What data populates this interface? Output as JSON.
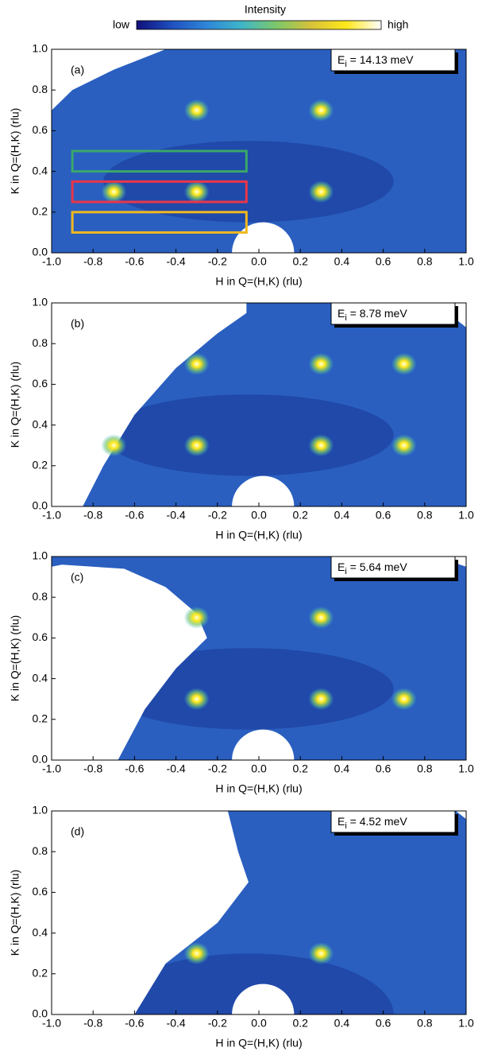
{
  "colorbar": {
    "title": "Intensity",
    "low": "low",
    "high": "high",
    "colors": [
      "#10107a",
      "#1f4fbf",
      "#2e86d8",
      "#3fb5c9",
      "#7cc86a",
      "#d7c23a",
      "#ffe81a",
      "#ffffff"
    ]
  },
  "chart_data": [
    {
      "type": "heatmap",
      "panel_label": "(a)",
      "annotation": {
        "symbol": "E",
        "subscript": "i",
        "text": " = 14.13 meV"
      },
      "x_label": "H in Q=(H,K) (rlu)",
      "y_label": "K in Q=(H,K) (rlu)",
      "xlim": [
        -1,
        1
      ],
      "ylim": [
        0,
        1
      ],
      "xticks": [
        {
          "value": -1,
          "label": "-1.0"
        },
        {
          "value": -0.8,
          "label": "-0.8"
        },
        {
          "value": -0.6,
          "label": "-0.6"
        },
        {
          "value": -0.4,
          "label": "-0.4"
        },
        {
          "value": -0.2,
          "label": "-0.2"
        },
        {
          "value": 0,
          "label": "0.0"
        },
        {
          "value": 0.2,
          "label": "0.2"
        },
        {
          "value": 0.4,
          "label": "0.4"
        },
        {
          "value": 0.6,
          "label": "0.6"
        },
        {
          "value": 0.8,
          "label": "0.8"
        },
        {
          "value": 1,
          "label": "1.0"
        }
      ],
      "yticks": [
        {
          "value": 0,
          "label": "0.0"
        },
        {
          "value": 0.2,
          "label": "0.2"
        },
        {
          "value": 0.4,
          "label": "0.4"
        },
        {
          "value": 0.6,
          "label": "0.6"
        },
        {
          "value": 0.8,
          "label": "0.8"
        },
        {
          "value": 1,
          "label": "1.0"
        }
      ],
      "peaks": {
        "x": [
          -0.7,
          -0.3,
          0.3,
          -0.3,
          0.3
        ],
        "y": [
          0.3,
          0.3,
          0.3,
          0.7,
          0.7
        ]
      },
      "regions": [
        {
          "color": "#3aa86b",
          "xlim": [
            -0.9,
            -0.06
          ],
          "ylim": [
            0.4,
            0.5
          ]
        },
        {
          "color": "#e8364a",
          "xlim": [
            -0.9,
            -0.06
          ],
          "ylim": [
            0.25,
            0.35
          ]
        },
        {
          "color": "#f2b81e",
          "xlim": [
            -0.9,
            -0.06
          ],
          "ylim": [
            0.1,
            0.2
          ]
        }
      ]
    },
    {
      "type": "heatmap",
      "panel_label": "(b)",
      "annotation": {
        "symbol": "E",
        "subscript": "i",
        "text": " = 8.78 meV"
      },
      "x_label": "H in Q=(H,K) (rlu)",
      "y_label": "K in Q=(H,K) (rlu)",
      "xlim": [
        -1,
        1
      ],
      "ylim": [
        0,
        1
      ],
      "xticks": [
        {
          "value": -1,
          "label": "-1.0"
        },
        {
          "value": -0.8,
          "label": "-0.8"
        },
        {
          "value": -0.6,
          "label": "-0.6"
        },
        {
          "value": -0.4,
          "label": "-0.4"
        },
        {
          "value": -0.2,
          "label": "-0.2"
        },
        {
          "value": 0,
          "label": "0.0"
        },
        {
          "value": 0.2,
          "label": "0.2"
        },
        {
          "value": 0.4,
          "label": "0.4"
        },
        {
          "value": 0.6,
          "label": "0.6"
        },
        {
          "value": 0.8,
          "label": "0.8"
        },
        {
          "value": 1,
          "label": "1.0"
        }
      ],
      "yticks": [
        {
          "value": 0,
          "label": "0.0"
        },
        {
          "value": 0.2,
          "label": "0.2"
        },
        {
          "value": 0.4,
          "label": "0.4"
        },
        {
          "value": 0.6,
          "label": "0.6"
        },
        {
          "value": 0.8,
          "label": "0.8"
        },
        {
          "value": 1,
          "label": "1.0"
        }
      ],
      "peaks": {
        "x": [
          -0.7,
          -0.3,
          0.3,
          0.7,
          -0.3,
          0.3,
          0.7
        ],
        "y": [
          0.3,
          0.3,
          0.3,
          0.3,
          0.7,
          0.7,
          0.7
        ]
      }
    },
    {
      "type": "heatmap",
      "panel_label": "(c)",
      "annotation": {
        "symbol": "E",
        "subscript": "i",
        "text": " = 5.64 meV"
      },
      "x_label": "H in Q=(H,K) (rlu)",
      "y_label": "K in Q=(H,K) (rlu)",
      "xlim": [
        -1,
        1
      ],
      "ylim": [
        0,
        1
      ],
      "xticks": [
        {
          "value": -1,
          "label": "-1.0"
        },
        {
          "value": -0.8,
          "label": "-0.8"
        },
        {
          "value": -0.6,
          "label": "-0.6"
        },
        {
          "value": -0.4,
          "label": "-0.4"
        },
        {
          "value": -0.2,
          "label": "-0.2"
        },
        {
          "value": 0,
          "label": "0.0"
        },
        {
          "value": 0.2,
          "label": "0.2"
        },
        {
          "value": 0.4,
          "label": "0.4"
        },
        {
          "value": 0.6,
          "label": "0.6"
        },
        {
          "value": 0.8,
          "label": "0.8"
        },
        {
          "value": 1,
          "label": "1.0"
        }
      ],
      "yticks": [
        {
          "value": 0,
          "label": "0.0"
        },
        {
          "value": 0.2,
          "label": "0.2"
        },
        {
          "value": 0.4,
          "label": "0.4"
        },
        {
          "value": 0.6,
          "label": "0.6"
        },
        {
          "value": 0.8,
          "label": "0.8"
        },
        {
          "value": 1,
          "label": "1.0"
        }
      ],
      "peaks": {
        "x": [
          -0.3,
          0.3,
          0.7,
          -0.3,
          0.3
        ],
        "y": [
          0.3,
          0.3,
          0.3,
          0.7,
          0.7
        ]
      }
    },
    {
      "type": "heatmap",
      "panel_label": "(d)",
      "annotation": {
        "symbol": "E",
        "subscript": "i",
        "text": " = 4.52 meV"
      },
      "x_label": "H in Q=(H,K) (rlu)",
      "y_label": "K in Q=(H,K) (rlu)",
      "xlim": [
        -1,
        1
      ],
      "ylim": [
        0,
        1
      ],
      "xticks": [
        {
          "value": -1,
          "label": "-1.0"
        },
        {
          "value": -0.8,
          "label": "-0.8"
        },
        {
          "value": -0.6,
          "label": "-0.6"
        },
        {
          "value": -0.4,
          "label": "-0.4"
        },
        {
          "value": -0.2,
          "label": "-0.2"
        },
        {
          "value": 0,
          "label": "0.0"
        },
        {
          "value": 0.2,
          "label": "0.2"
        },
        {
          "value": 0.4,
          "label": "0.4"
        },
        {
          "value": 0.6,
          "label": "0.6"
        },
        {
          "value": 0.8,
          "label": "0.8"
        },
        {
          "value": 1,
          "label": "1.0"
        }
      ],
      "yticks": [
        {
          "value": 0,
          "label": "0.0"
        },
        {
          "value": 0.2,
          "label": "0.2"
        },
        {
          "value": 0.4,
          "label": "0.4"
        },
        {
          "value": 0.6,
          "label": "0.6"
        },
        {
          "value": 0.8,
          "label": "0.8"
        },
        {
          "value": 1,
          "label": "1.0"
        }
      ],
      "peaks": {
        "x": [
          -0.3,
          0.3
        ],
        "y": [
          0.3,
          0.3
        ]
      }
    }
  ]
}
